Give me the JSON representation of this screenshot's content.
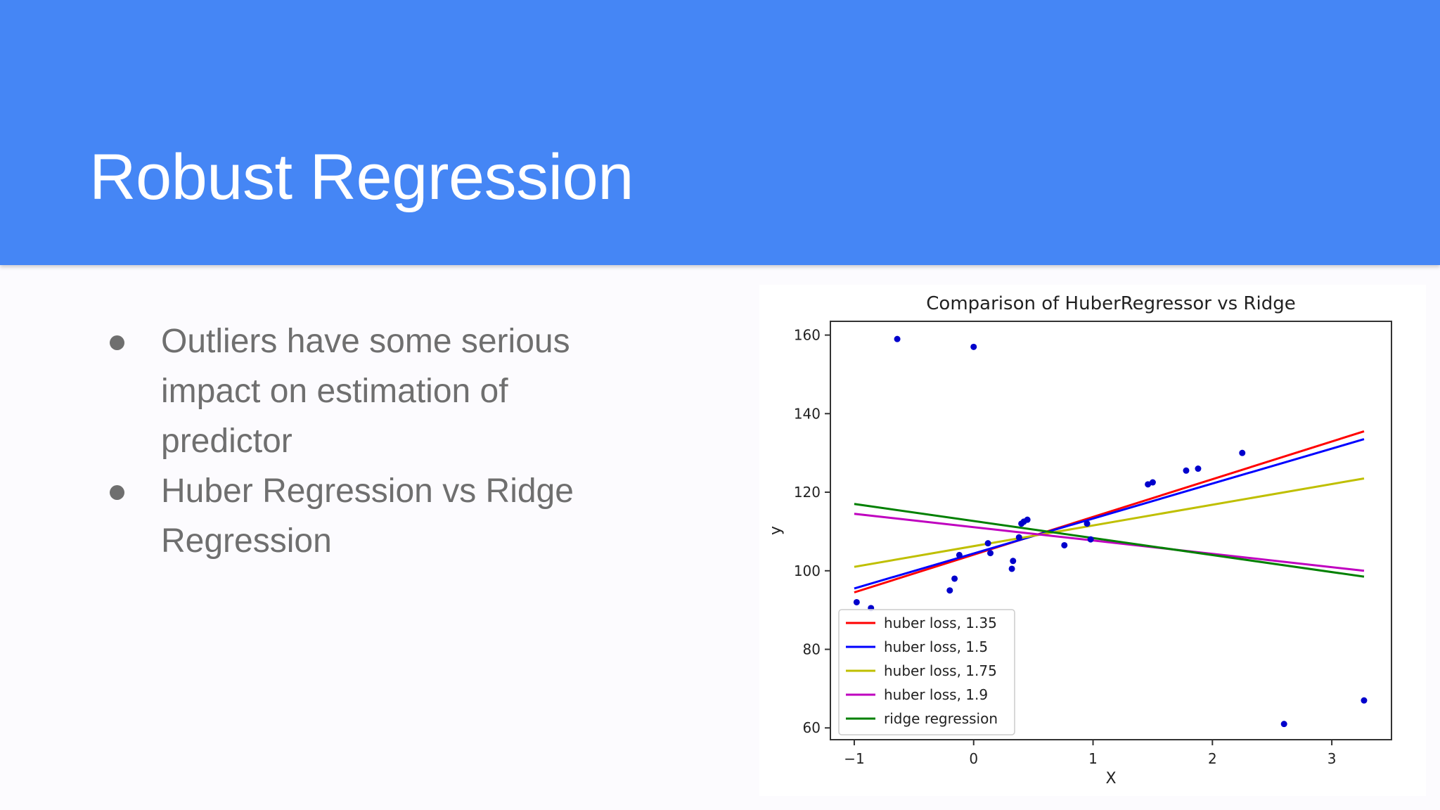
{
  "slide": {
    "title": "Robust Regression",
    "bullets": [
      "Outliers have some serious impact on estimation of predictor",
      "Huber Regression vs Ridge Regression"
    ]
  },
  "colors": {
    "header": "#4586f5",
    "background": "#fcfbfe",
    "title_text": "#ffffff",
    "body_text": "#6f6f6f"
  },
  "chart_data": {
    "type": "scatter",
    "title": "Comparison of HuberRegressor vs Ridge",
    "xlabel": "X",
    "ylabel": "y",
    "xlim": [
      -1.2,
      3.5
    ],
    "ylim": [
      57,
      163.5
    ],
    "xticks": [
      -1,
      0,
      1,
      2,
      3
    ],
    "yticks": [
      60,
      80,
      100,
      120,
      140,
      160
    ],
    "grid": false,
    "legend_position": "lower-left",
    "points": {
      "color": "#0000cc",
      "x": [
        -0.98,
        -0.86,
        -0.64,
        0.0,
        -0.2,
        -0.16,
        -0.12,
        0.12,
        0.14,
        0.32,
        0.33,
        0.38,
        0.4,
        0.42,
        0.45,
        0.76,
        0.95,
        0.98,
        1.46,
        1.5,
        1.78,
        1.88,
        2.25,
        2.6,
        3.27
      ],
      "y": [
        92,
        90.5,
        159,
        157,
        95,
        98,
        104,
        107,
        104.5,
        100.5,
        102.5,
        108.5,
        112,
        112.5,
        113,
        106.5,
        112,
        108,
        122,
        122.5,
        125.5,
        126,
        130,
        61,
        67
      ]
    },
    "series": [
      {
        "name": "huber loss, 1.35",
        "color": "#ff0000",
        "x": [
          -1,
          3.27
        ],
        "y": [
          94.5,
          135.5
        ]
      },
      {
        "name": "huber loss, 1.5",
        "color": "#0000ff",
        "x": [
          -1,
          3.27
        ],
        "y": [
          95.5,
          133.5
        ]
      },
      {
        "name": "huber loss, 1.75",
        "color": "#bfbf00",
        "x": [
          -1,
          3.27
        ],
        "y": [
          101,
          123.5
        ]
      },
      {
        "name": "huber loss, 1.9",
        "color": "#bf00bf",
        "x": [
          -1,
          3.27
        ],
        "y": [
          114.5,
          100
        ]
      },
      {
        "name": "ridge regression",
        "color": "#008000",
        "x": [
          -1,
          3.27
        ],
        "y": [
          117,
          98.5
        ]
      }
    ]
  }
}
